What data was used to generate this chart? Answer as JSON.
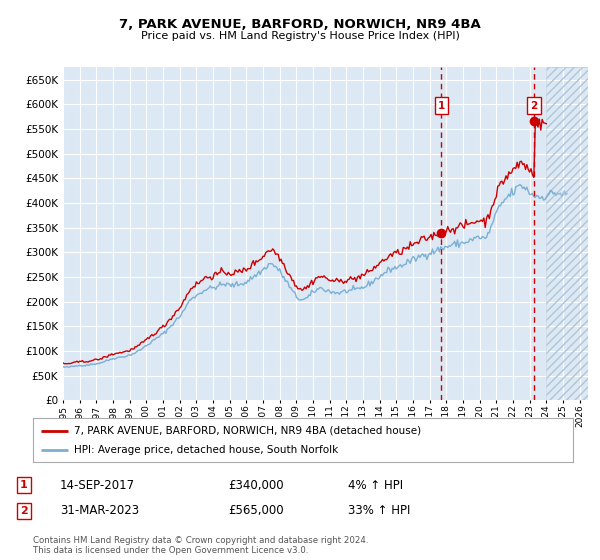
{
  "title": "7, PARK AVENUE, BARFORD, NORWICH, NR9 4BA",
  "subtitle": "Price paid vs. HM Land Registry's House Price Index (HPI)",
  "ylim": [
    0,
    675000
  ],
  "xlim_start": 1995.0,
  "xlim_end": 2026.5,
  "background_color": "#dce9f5",
  "grid_color": "#c8d8ea",
  "transaction1": {
    "date_num": 2017.71,
    "price": 340000,
    "label": "1",
    "date_str": "14-SEP-2017",
    "pct": "4%"
  },
  "transaction2": {
    "date_num": 2023.25,
    "price": 565000,
    "label": "2",
    "date_str": "31-MAR-2023",
    "pct": "33%"
  },
  "legend_line1": "7, PARK AVENUE, BARFORD, NORWICH, NR9 4BA (detached house)",
  "legend_line2": "HPI: Average price, detached house, South Norfolk",
  "footnote": "Contains HM Land Registry data © Crown copyright and database right 2024.\nThis data is licensed under the Open Government Licence v3.0.",
  "hpi_color": "#7bafd4",
  "price_color": "#cc0000",
  "future_start": 2024.0,
  "hpi_base": [
    1995.0,
    68000,
    1995.083,
    67500,
    1995.167,
    67200,
    1995.25,
    67000,
    1995.333,
    67500,
    1995.417,
    68000,
    1995.5,
    68200,
    1995.583,
    68500,
    1995.667,
    69000,
    1995.75,
    69500,
    1995.833,
    70000,
    1995.917,
    70500,
    1996.0,
    71000,
    1996.083,
    71200,
    1996.167,
    71000,
    1996.25,
    70800,
    1996.333,
    71000,
    1996.417,
    71500,
    1996.5,
    72000,
    1996.583,
    72300,
    1996.667,
    72800,
    1996.75,
    73000,
    1996.833,
    73500,
    1996.917,
    74000,
    1997.0,
    74500,
    1997.083,
    75000,
    1997.167,
    75500,
    1997.25,
    76000,
    1997.333,
    77000,
    1997.417,
    78000,
    1997.5,
    79000,
    1997.583,
    80000,
    1997.667,
    81000,
    1997.75,
    82000,
    1997.833,
    83000,
    1997.917,
    84000,
    1998.0,
    85000,
    1998.083,
    85500,
    1998.167,
    86000,
    1998.25,
    86500,
    1998.333,
    87000,
    1998.417,
    87500,
    1998.5,
    88000,
    1998.583,
    88500,
    1998.667,
    89000,
    1998.75,
    89500,
    1998.833,
    90000,
    1998.917,
    91000,
    1999.0,
    92000,
    1999.083,
    93000,
    1999.167,
    94000,
    1999.25,
    95000,
    1999.333,
    96500,
    1999.417,
    98000,
    1999.5,
    99500,
    1999.583,
    101000,
    1999.667,
    103000,
    1999.75,
    105000,
    1999.833,
    107000,
    1999.917,
    109000,
    2000.0,
    111000,
    2000.083,
    113000,
    2000.167,
    115000,
    2000.25,
    117000,
    2000.333,
    119000,
    2000.417,
    121000,
    2000.5,
    123000,
    2000.583,
    125000,
    2000.667,
    127000,
    2000.75,
    129000,
    2000.833,
    131000,
    2000.917,
    133000,
    2001.0,
    135000,
    2001.083,
    137500,
    2001.167,
    140000,
    2001.25,
    143000,
    2001.333,
    146000,
    2001.417,
    149000,
    2001.5,
    152000,
    2001.583,
    155000,
    2001.667,
    158000,
    2001.75,
    161000,
    2001.833,
    164000,
    2001.917,
    167000,
    2002.0,
    170000,
    2002.083,
    174000,
    2002.167,
    178000,
    2002.25,
    182000,
    2002.333,
    187000,
    2002.417,
    192000,
    2002.5,
    197000,
    2002.583,
    201000,
    2002.667,
    205000,
    2002.75,
    208000,
    2002.833,
    210000,
    2002.917,
    211000,
    2003.0,
    212000,
    2003.083,
    214000,
    2003.167,
    216000,
    2003.25,
    218000,
    2003.333,
    220000,
    2003.417,
    222000,
    2003.5,
    224000,
    2003.583,
    225000,
    2003.667,
    226000,
    2003.75,
    226500,
    2003.833,
    227000,
    2003.917,
    227500,
    2004.0,
    228000,
    2004.083,
    229000,
    2004.167,
    230000,
    2004.25,
    231000,
    2004.333,
    232000,
    2004.417,
    233000,
    2004.5,
    234000,
    2004.583,
    234500,
    2004.667,
    235000,
    2004.75,
    235000,
    2004.833,
    234500,
    2004.917,
    234000,
    2005.0,
    233500,
    2005.083,
    233000,
    2005.167,
    233000,
    2005.25,
    233500,
    2005.333,
    234000,
    2005.417,
    234500,
    2005.5,
    235000,
    2005.583,
    235500,
    2005.667,
    236000,
    2005.75,
    237000,
    2005.833,
    238000,
    2005.917,
    239000,
    2006.0,
    240000,
    2006.083,
    242000,
    2006.167,
    244000,
    2006.25,
    246000,
    2006.333,
    248000,
    2006.417,
    250000,
    2006.5,
    252000,
    2006.583,
    254000,
    2006.667,
    256000,
    2006.75,
    258000,
    2006.833,
    260000,
    2006.917,
    262000,
    2007.0,
    264000,
    2007.083,
    267000,
    2007.167,
    270000,
    2007.25,
    273000,
    2007.333,
    275000,
    2007.417,
    276000,
    2007.5,
    276000,
    2007.583,
    275000,
    2007.667,
    273000,
    2007.75,
    271000,
    2007.833,
    268000,
    2007.917,
    265000,
    2008.0,
    261000,
    2008.083,
    257000,
    2008.167,
    253000,
    2008.25,
    249000,
    2008.333,
    244000,
    2008.417,
    240000,
    2008.5,
    236000,
    2008.583,
    231000,
    2008.667,
    226000,
    2008.75,
    222000,
    2008.833,
    218000,
    2008.917,
    214000,
    2009.0,
    210000,
    2009.083,
    208000,
    2009.167,
    206000,
    2009.25,
    205000,
    2009.333,
    204000,
    2009.417,
    204000,
    2009.5,
    205000,
    2009.583,
    206000,
    2009.667,
    208000,
    2009.75,
    210000,
    2009.833,
    213000,
    2009.917,
    216000,
    2010.0,
    219000,
    2010.083,
    221000,
    2010.167,
    223000,
    2010.25,
    225000,
    2010.333,
    226000,
    2010.417,
    227000,
    2010.5,
    227000,
    2010.583,
    226000,
    2010.667,
    225000,
    2010.75,
    224000,
    2010.833,
    223000,
    2010.917,
    222000,
    2011.0,
    221000,
    2011.083,
    220000,
    2011.167,
    219500,
    2011.25,
    219000,
    2011.333,
    218500,
    2011.417,
    218000,
    2011.5,
    218000,
    2011.583,
    218000,
    2011.667,
    218500,
    2011.75,
    219000,
    2011.833,
    220000,
    2011.917,
    221000,
    2012.0,
    221500,
    2012.083,
    222000,
    2012.167,
    222000,
    2012.25,
    222000,
    2012.333,
    222000,
    2012.417,
    222500,
    2012.5,
    223000,
    2012.583,
    224000,
    2012.667,
    225000,
    2012.75,
    226000,
    2012.833,
    227000,
    2012.917,
    228000,
    2013.0,
    229000,
    2013.083,
    230000,
    2013.167,
    231000,
    2013.25,
    233000,
    2013.333,
    235000,
    2013.417,
    237000,
    2013.5,
    239000,
    2013.583,
    241000,
    2013.667,
    243000,
    2013.75,
    245000,
    2013.833,
    247000,
    2013.917,
    249000,
    2014.0,
    251000,
    2014.083,
    253000,
    2014.167,
    255000,
    2014.25,
    257000,
    2014.333,
    259000,
    2014.417,
    261000,
    2014.5,
    263000,
    2014.583,
    265000,
    2014.667,
    266000,
    2014.75,
    267000,
    2014.833,
    268000,
    2014.917,
    268500,
    2015.0,
    269000,
    2015.083,
    270000,
    2015.167,
    271000,
    2015.25,
    272000,
    2015.333,
    274000,
    2015.417,
    275000,
    2015.5,
    277000,
    2015.583,
    278000,
    2015.667,
    280000,
    2015.75,
    281000,
    2015.833,
    282000,
    2015.917,
    283000,
    2016.0,
    284000,
    2016.083,
    286000,
    2016.167,
    287000,
    2016.25,
    289000,
    2016.333,
    290000,
    2016.417,
    292000,
    2016.5,
    293000,
    2016.583,
    294000,
    2016.667,
    295000,
    2016.75,
    296000,
    2016.833,
    297000,
    2016.917,
    298000,
    2017.0,
    299000,
    2017.083,
    300000,
    2017.167,
    301000,
    2017.25,
    302000,
    2017.333,
    303000,
    2017.417,
    304000,
    2017.5,
    305000,
    2017.583,
    306000,
    2017.667,
    307000,
    2017.75,
    308000,
    2017.833,
    309000,
    2017.917,
    310000,
    2018.0,
    311000,
    2018.083,
    312000,
    2018.167,
    313000,
    2018.25,
    314000,
    2018.333,
    315000,
    2018.417,
    315500,
    2018.5,
    316000,
    2018.583,
    316500,
    2018.667,
    317000,
    2018.75,
    317500,
    2018.833,
    318000,
    2018.917,
    318500,
    2019.0,
    319000,
    2019.083,
    320000,
    2019.167,
    321000,
    2019.25,
    322000,
    2019.333,
    323000,
    2019.417,
    324000,
    2019.5,
    325000,
    2019.583,
    326000,
    2019.667,
    327000,
    2019.75,
    328000,
    2019.833,
    329000,
    2019.917,
    330000,
    2020.0,
    331000,
    2020.083,
    330000,
    2020.167,
    329000,
    2020.25,
    328000,
    2020.333,
    328000,
    2020.417,
    330000,
    2020.5,
    335000,
    2020.583,
    342000,
    2020.667,
    350000,
    2020.75,
    358000,
    2020.833,
    365000,
    2020.917,
    372000,
    2021.0,
    378000,
    2021.083,
    384000,
    2021.167,
    389000,
    2021.25,
    394000,
    2021.333,
    398000,
    2021.417,
    402000,
    2021.5,
    406000,
    2021.583,
    409000,
    2021.667,
    412000,
    2021.75,
    415000,
    2021.833,
    417000,
    2021.917,
    419000,
    2022.0,
    421000,
    2022.083,
    424000,
    2022.167,
    427000,
    2022.25,
    430000,
    2022.333,
    432000,
    2022.417,
    434000,
    2022.5,
    435000,
    2022.583,
    434000,
    2022.667,
    432000,
    2022.75,
    430000,
    2022.833,
    427000,
    2022.917,
    424000,
    2023.0,
    421000,
    2023.083,
    419000,
    2023.167,
    417000,
    2023.25,
    416000,
    2023.333,
    415000,
    2023.417,
    414000,
    2023.5,
    413000,
    2023.583,
    412000,
    2023.667,
    412000,
    2023.75,
    412000,
    2023.833,
    413000,
    2023.917,
    414000,
    2024.0,
    415000,
    2024.083,
    416000,
    2024.167,
    417000,
    2024.25,
    418000,
    2024.333,
    419000,
    2024.417,
    419500,
    2024.5,
    420000,
    2024.583,
    420000,
    2024.667,
    419500,
    2024.75,
    419000,
    2024.833,
    418500,
    2024.917,
    418000,
    2025.0,
    417000,
    2025.083,
    417000,
    2025.167,
    417000,
    2025.25,
    417000
  ]
}
